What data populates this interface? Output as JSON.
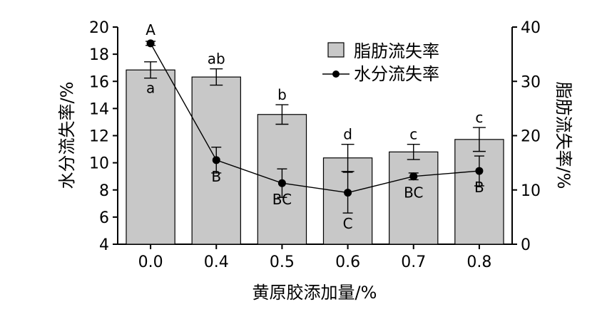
{
  "chart_data": {
    "type": "bar",
    "xlabel": "黄原胶添加量/%",
    "ylabel_left": "水分流失率/%",
    "ylabel_right": "脂肪流失率/%",
    "categories": [
      "0.0",
      "0.4",
      "0.5",
      "0.6",
      "0.7",
      "0.8"
    ],
    "ylim_left": [
      4,
      20
    ],
    "yticks_left": [
      4,
      6,
      8,
      10,
      12,
      14,
      16,
      18,
      20
    ],
    "ylim_right": [
      0,
      40
    ],
    "yticks_right": [
      0,
      10,
      20,
      30,
      40
    ],
    "series": [
      {
        "name": "脂肪流失率",
        "type": "bar",
        "axis": "right",
        "values": [
          32.1,
          30.8,
          23.9,
          15.9,
          17.0,
          19.3
        ],
        "errors": [
          1.5,
          1.5,
          1.8,
          2.5,
          1.4,
          2.2
        ],
        "labels": [
          "a",
          "ab",
          "b",
          "d",
          "c",
          "c"
        ]
      },
      {
        "name": "水分流失率",
        "type": "line",
        "axis": "left",
        "values": [
          18.8,
          10.2,
          8.5,
          7.8,
          9.0,
          9.4
        ],
        "errors": [
          0.15,
          0.95,
          1.05,
          1.5,
          0.25,
          1.1
        ],
        "labels": [
          "A",
          "B",
          "BC",
          "C",
          "BC",
          "B"
        ]
      }
    ],
    "legend": {
      "position": "top-right",
      "entries": [
        "脂肪流失率",
        "水分流失率"
      ]
    },
    "grid": false
  }
}
